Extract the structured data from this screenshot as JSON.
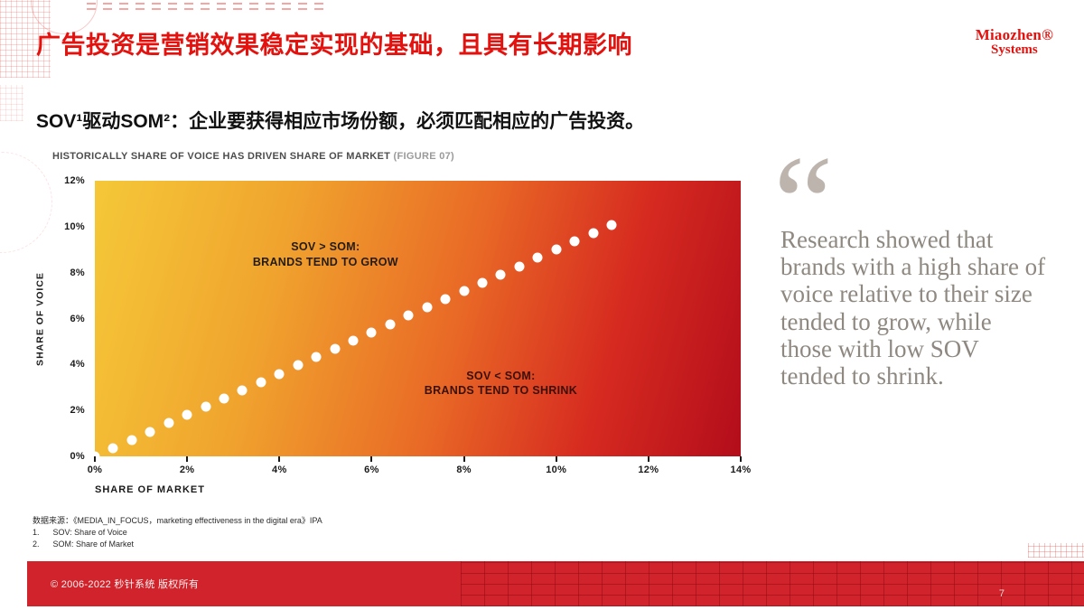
{
  "slide": {
    "title": "广告投资是营销效果稳定实现的基础，且具有长期影响",
    "subtitle": "SOV¹驱动SOM²：企业要获得相应市场份额，必须匹配相应的广告投资。"
  },
  "logo": {
    "line1": "Miaozhen®",
    "line2": "Systems"
  },
  "chart": {
    "header_main": "HISTORICALLY SHARE OF VOICE HAS DRIVEN SHARE OF MARKET ",
    "header_figure": "(FIGURE 07)"
  },
  "chart_data": {
    "type": "scatter",
    "title": "HISTORICALLY SHARE OF VOICE HAS DRIVEN SHARE OF MARKET (FIGURE 07)",
    "xlabel": "SHARE OF MARKET",
    "ylabel": "SHARE OF VOICE",
    "xlim": [
      0,
      14
    ],
    "ylim": [
      0,
      12
    ],
    "x_ticks": [
      "0%",
      "2%",
      "4%",
      "6%",
      "8%",
      "10%",
      "12%",
      "14%"
    ],
    "y_ticks": [
      "0%",
      "2%",
      "4%",
      "6%",
      "8%",
      "10%",
      "12%"
    ],
    "grid": false,
    "legend": "none",
    "background_gradient": [
      "#f5c838",
      "#f0a42e",
      "#e96a26",
      "#d62a20",
      "#b30d1b"
    ],
    "point_color": "#ffffff",
    "points": [
      [
        0,
        0
      ],
      [
        0.4,
        0.36
      ],
      [
        0.8,
        0.72
      ],
      [
        1.2,
        1.08
      ],
      [
        1.6,
        1.44
      ],
      [
        2,
        1.8
      ],
      [
        2.4,
        2.16
      ],
      [
        2.8,
        2.52
      ],
      [
        3.2,
        2.88
      ],
      [
        3.6,
        3.24
      ],
      [
        4,
        3.6
      ],
      [
        4.4,
        3.96
      ],
      [
        4.8,
        4.32
      ],
      [
        5.2,
        4.68
      ],
      [
        5.6,
        5.04
      ],
      [
        6,
        5.4
      ],
      [
        6.4,
        5.76
      ],
      [
        6.8,
        6.12
      ],
      [
        7.2,
        6.48
      ],
      [
        7.6,
        6.84
      ],
      [
        8,
        7.2
      ],
      [
        8.4,
        7.56
      ],
      [
        8.8,
        7.92
      ],
      [
        9.2,
        8.28
      ],
      [
        9.6,
        8.64
      ],
      [
        10,
        9
      ],
      [
        10.4,
        9.36
      ],
      [
        10.8,
        9.72
      ],
      [
        11.2,
        10.08
      ]
    ],
    "annotations": [
      {
        "lines": [
          "SOV > SOM:",
          "BRANDS TEND TO GROW"
        ],
        "x": 5.0,
        "y": 8.8,
        "color": "#241c14"
      },
      {
        "lines": [
          "SOV < SOM:",
          "BRANDS TEND TO SHRINK"
        ],
        "x": 8.8,
        "y": 3.2,
        "color": "#3a100a"
      }
    ]
  },
  "quote": {
    "mark": "“",
    "text": "Research showed that brands with a high share of voice relative to their size tended to grow, while those with low SOV tended to shrink."
  },
  "footnotes": {
    "source": "数据来源：《MEDIA_IN_FOCUS，marketing effectiveness in the digital era》IPA",
    "items": [
      "1.      SOV: Share of Voice",
      "2.      SOM: Share of Market"
    ]
  },
  "footer": {
    "copyright": "© 2006-2022 秒针系统 版权所有",
    "page_number": "7"
  },
  "colors": {
    "accent_red": "#e4120e",
    "footer_red": "#d0232b",
    "quote_gray": "#8e8880"
  }
}
